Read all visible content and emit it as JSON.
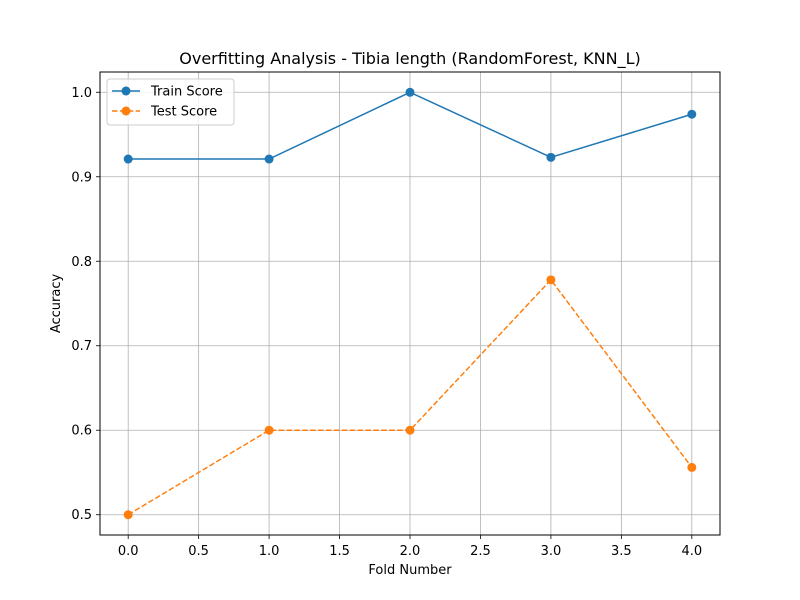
{
  "chart_data": {
    "type": "line",
    "title": "Overfitting Analysis - Tibia length (RandomForest, KNN_L)",
    "xlabel": "Fold Number",
    "ylabel": "Accuracy",
    "xlim": [
      -0.2,
      4.2
    ],
    "ylim": [
      0.476,
      1.024
    ],
    "xticks": [
      0.0,
      0.5,
      1.0,
      1.5,
      2.0,
      2.5,
      3.0,
      3.5,
      4.0
    ],
    "xtick_labels": [
      "0.0",
      "0.5",
      "1.0",
      "1.5",
      "2.0",
      "2.5",
      "3.0",
      "3.5",
      "4.0"
    ],
    "yticks": [
      0.5,
      0.6,
      0.7,
      0.8,
      0.9,
      1.0
    ],
    "ytick_labels": [
      "0.5",
      "0.6",
      "0.7",
      "0.8",
      "0.9",
      "1.0"
    ],
    "grid": true,
    "legend": "top-left",
    "x": [
      0,
      1,
      2,
      3,
      4
    ],
    "series": [
      {
        "name": "Train Score",
        "values": [
          0.921,
          0.921,
          1.0,
          0.923,
          0.974
        ],
        "color": "#1f77b4",
        "dash": "solid",
        "marker": "circle"
      },
      {
        "name": "Test Score",
        "values": [
          0.5,
          0.6,
          0.6,
          0.778,
          0.556
        ],
        "color": "#ff7f0e",
        "dash": "dashed",
        "marker": "circle"
      }
    ]
  }
}
